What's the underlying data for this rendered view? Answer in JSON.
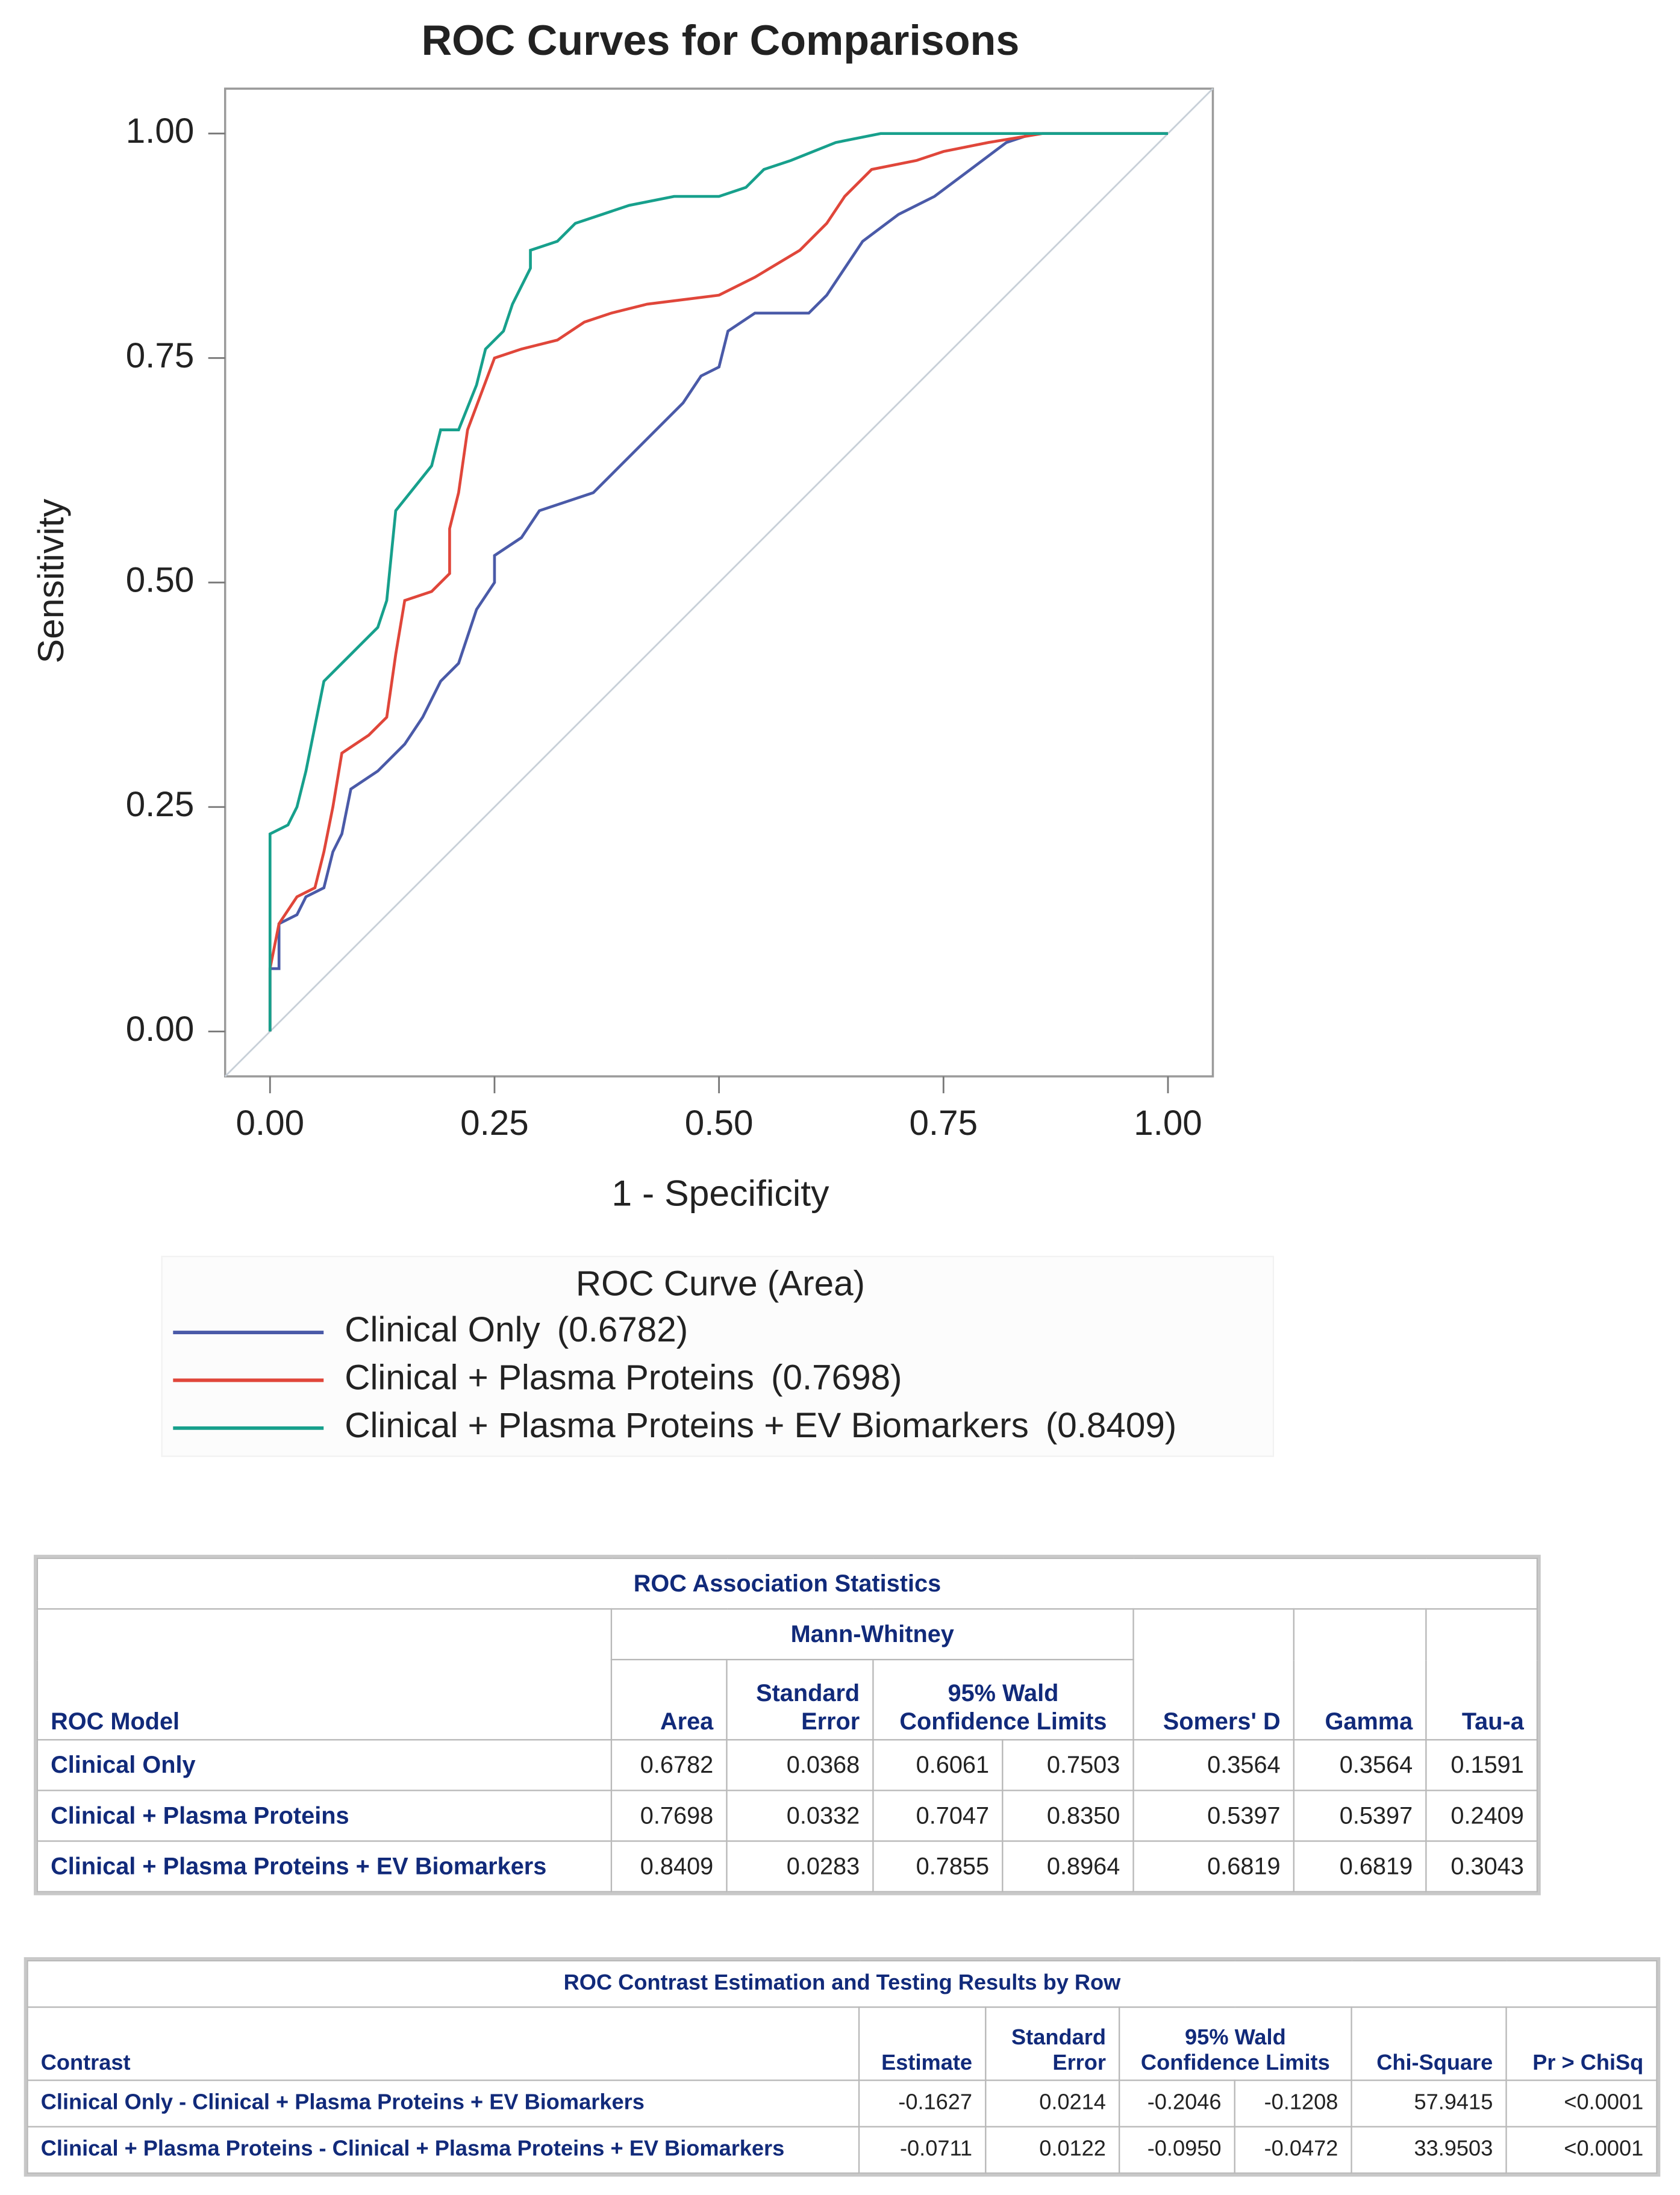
{
  "chart_data": {
    "type": "line",
    "title": "ROC Curves for Comparisons",
    "x_label": "1 - Specificity",
    "y_label": "Sensitivity",
    "xlim": [
      -0.05,
      1.05
    ],
    "ylim": [
      -0.05,
      1.05
    ],
    "xticks": [
      {
        "value": 0,
        "label": "0.00"
      },
      {
        "value": 0.25,
        "label": "0.25"
      },
      {
        "value": 0.5,
        "label": "0.50"
      },
      {
        "value": 0.75,
        "label": "0.75"
      },
      {
        "value": 1,
        "label": "1.00"
      }
    ],
    "yticks": [
      {
        "value": 0,
        "label": "0.00"
      },
      {
        "value": 0.25,
        "label": "0.25"
      },
      {
        "value": 0.5,
        "label": "0.50"
      },
      {
        "value": 0.75,
        "label": "0.75"
      },
      {
        "value": 1,
        "label": "1.00"
      }
    ],
    "legend_title": "ROC Curve (Area)",
    "series": [
      {
        "name": "Clinical Only",
        "area_label": "(0.6782)",
        "color": "#4a5aa8",
        "x": [
          0,
          0,
          0.01,
          0.01,
          0.03,
          0.04,
          0.06,
          0.07,
          0.08,
          0.09,
          0.12,
          0.15,
          0.17,
          0.19,
          0.21,
          0.23,
          0.25,
          0.25,
          0.28,
          0.3,
          0.36,
          0.39,
          0.42,
          0.46,
          0.48,
          0.5,
          0.51,
          0.54,
          0.6,
          0.62,
          0.66,
          0.7,
          0.74,
          0.78,
          0.82,
          0.85,
          1
        ],
        "values": [
          0,
          0.07,
          0.07,
          0.12,
          0.13,
          0.15,
          0.16,
          0.2,
          0.22,
          0.27,
          0.29,
          0.32,
          0.35,
          0.39,
          0.41,
          0.47,
          0.5,
          0.53,
          0.55,
          0.58,
          0.6,
          0.63,
          0.66,
          0.7,
          0.73,
          0.74,
          0.78,
          0.8,
          0.8,
          0.82,
          0.88,
          0.91,
          0.93,
          0.96,
          0.99,
          1,
          1
        ]
      },
      {
        "name": "Clinical + Plasma Proteins",
        "area_label": "(0.7698)",
        "color": "#e0463a",
        "x": [
          0,
          0,
          0.01,
          0.03,
          0.05,
          0.06,
          0.07,
          0.08,
          0.11,
          0.13,
          0.14,
          0.15,
          0.18,
          0.2,
          0.2,
          0.21,
          0.22,
          0.25,
          0.28,
          0.32,
          0.35,
          0.38,
          0.42,
          0.5,
          0.54,
          0.59,
          0.62,
          0.64,
          0.67,
          0.72,
          0.75,
          0.8,
          0.86,
          1
        ],
        "values": [
          0,
          0.07,
          0.12,
          0.15,
          0.16,
          0.2,
          0.25,
          0.31,
          0.33,
          0.35,
          0.42,
          0.48,
          0.49,
          0.51,
          0.56,
          0.6,
          0.67,
          0.75,
          0.76,
          0.77,
          0.79,
          0.8,
          0.81,
          0.82,
          0.84,
          0.87,
          0.9,
          0.93,
          0.96,
          0.97,
          0.98,
          0.99,
          1,
          1
        ]
      },
      {
        "name": "Clinical + Plasma Proteins + EV Biomarkers",
        "area_label": "(0.8409)",
        "color": "#17a08c",
        "x": [
          0,
          0,
          0.02,
          0.03,
          0.04,
          0.05,
          0.06,
          0.09,
          0.1,
          0.12,
          0.13,
          0.14,
          0.18,
          0.19,
          0.21,
          0.23,
          0.24,
          0.26,
          0.27,
          0.29,
          0.29,
          0.32,
          0.34,
          0.37,
          0.4,
          0.45,
          0.5,
          0.53,
          0.55,
          0.58,
          0.63,
          0.68,
          1
        ],
        "values": [
          0,
          0.22,
          0.23,
          0.25,
          0.29,
          0.34,
          0.39,
          0.42,
          0.43,
          0.45,
          0.48,
          0.58,
          0.63,
          0.67,
          0.67,
          0.72,
          0.76,
          0.78,
          0.81,
          0.85,
          0.87,
          0.88,
          0.9,
          0.91,
          0.92,
          0.93,
          0.93,
          0.94,
          0.96,
          0.97,
          0.99,
          1,
          1
        ]
      }
    ]
  },
  "association_table": {
    "title": "ROC Association Statistics",
    "header": {
      "model": "ROC Model",
      "group": "Mann-Whitney",
      "area": "Area",
      "se": "Standard Error",
      "ci": "95% Wald Confidence Limits",
      "somers": "Somers' D",
      "gamma": "Gamma",
      "tau": "Tau-a"
    },
    "rows": [
      [
        "Clinical Only",
        "0.6782",
        "0.0368",
        "0.6061",
        "0.7503",
        "0.3564",
        "0.3564",
        "0.1591"
      ],
      [
        "Clinical + Plasma Proteins",
        "0.7698",
        "0.0332",
        "0.7047",
        "0.8350",
        "0.5397",
        "0.5397",
        "0.2409"
      ],
      [
        "Clinical + Plasma Proteins + EV Biomarkers",
        "0.8409",
        "0.0283",
        "0.7855",
        "0.8964",
        "0.6819",
        "0.6819",
        "0.3043"
      ]
    ]
  },
  "contrast_table": {
    "title": "ROC Contrast Estimation and Testing Results by Row",
    "header": {
      "contrast": "Contrast",
      "estimate": "Estimate",
      "se": "Standard Error",
      "ci": "95% Wald Confidence Limits",
      "chisq": "Chi-Square",
      "p": "Pr > ChiSq"
    },
    "rows": [
      [
        "Clinical Only - Clinical + Plasma Proteins + EV Biomarkers",
        "-0.1627",
        "0.0214",
        "-0.2046",
        "-0.1208",
        "57.9415",
        "<0.0001"
      ],
      [
        "Clinical + Plasma Proteins - Clinical + Plasma Proteins + EV Biomarkers",
        "-0.0711",
        "0.0122",
        "-0.0950",
        "-0.0472",
        "33.9503",
        "<0.0001"
      ]
    ]
  }
}
